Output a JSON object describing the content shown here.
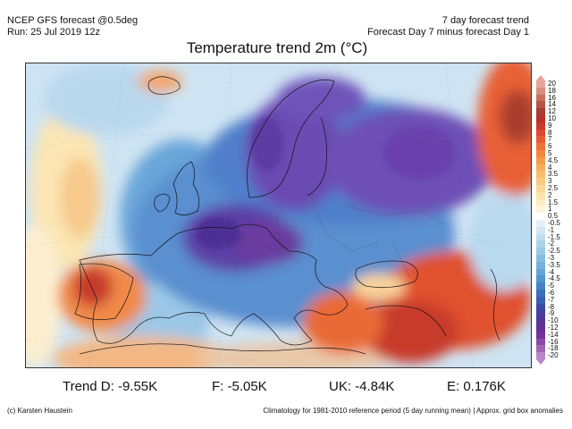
{
  "header": {
    "model": "NCEP GFS forecast @0.5deg",
    "run": "Run: 25 Jul 2019 12z",
    "trend_type": "7 day forecast trend",
    "trend_desc": "Forecast Day 7 minus forecast Day 1"
  },
  "title": "Temperature trend 2m (°C)",
  "legend": {
    "ticks": [
      "20",
      "18",
      "16",
      "14",
      "12",
      "10",
      "9",
      "8",
      "7",
      "6",
      "5",
      "4.5",
      "4",
      "3.5",
      "3",
      "2.5",
      "2",
      "1.5",
      "1",
      "0.5",
      "-0.5",
      "-1",
      "-1.5",
      "-2",
      "-2.5",
      "-3",
      "-3.5",
      "-4",
      "-4.5",
      "-5",
      "-6",
      "-7",
      "-8",
      "-9",
      "-10",
      "-12",
      "-14",
      "-16",
      "-18",
      "-20"
    ],
    "colors": [
      "#e6a59b",
      "#d98c80",
      "#c9705f",
      "#b75443",
      "#a63f2f",
      "#b8322b",
      "#cc3a2c",
      "#dd4a2e",
      "#e65d34",
      "#ee7438",
      "#f3893f",
      "#f59b4a",
      "#f7ad5a",
      "#f8bd6c",
      "#f9cb80",
      "#fad895",
      "#fbe3aa",
      "#fcecbf",
      "#fdf3d6",
      "#ffffff",
      "#e4f0f8",
      "#d2e7f4",
      "#c0def0",
      "#add3eb",
      "#9ac8e6",
      "#87bde1",
      "#74b1dc",
      "#62a4d6",
      "#5296cf",
      "#4684c6",
      "#3c70bc",
      "#3a5db2",
      "#3d4ba8",
      "#4a3ea0",
      "#573498",
      "#662e96",
      "#773099",
      "#8b4aa6",
      "#a067b6",
      "#b987c8"
    ]
  },
  "stats": {
    "trend_d": "Trend D: -9.55K",
    "trend_f": "F: -5.05K",
    "trend_uk": "UK: -4.84K",
    "trend_e": "E: 0.176K"
  },
  "footer": {
    "credit": "(c) Karsten Haustein",
    "note": "Climatology for 1981-2010 reference period (5 day running mean) | Approx. grid box anomalies"
  }
}
